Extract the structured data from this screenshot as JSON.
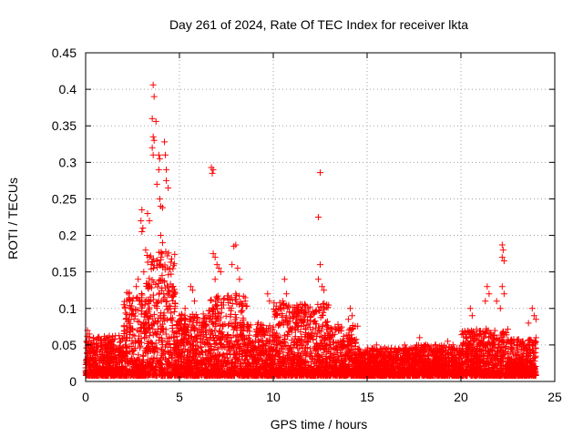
{
  "chart_data": {
    "type": "scatter",
    "title": "Day 261 of 2024, Rate Of TEC Index for receiver lkta",
    "xlabel": "GPS time / hours",
    "ylabel": "ROTI / TECUs",
    "xlim": [
      0,
      25
    ],
    "ylim": [
      0,
      0.45
    ],
    "xticks": [
      0,
      5,
      10,
      15,
      20,
      25
    ],
    "yticks": [
      0,
      0.05,
      0.1,
      0.15,
      0.2,
      0.25,
      0.3,
      0.35,
      0.4,
      0.45
    ],
    "xtick_labels": [
      "0",
      "5",
      "10",
      "15",
      "20",
      "25"
    ],
    "ytick_labels": [
      "0",
      "0.05",
      "0.1",
      "0.15",
      "0.2",
      "0.25",
      "0.3",
      "0.35",
      "0.4",
      "0.45"
    ],
    "grid": true,
    "marker": "+",
    "marker_color": "#ff0000",
    "series": [
      {
        "name": "ROTI",
        "points": [
          [
            3.6,
            0.406
          ],
          [
            3.65,
            0.39
          ],
          [
            3.55,
            0.36
          ],
          [
            3.75,
            0.356
          ],
          [
            3.6,
            0.335
          ],
          [
            3.65,
            0.33
          ],
          [
            3.55,
            0.32
          ],
          [
            3.6,
            0.31
          ],
          [
            3.9,
            0.31
          ],
          [
            3.95,
            0.305
          ],
          [
            3.9,
            0.29
          ],
          [
            4.2,
            0.328
          ],
          [
            4.25,
            0.31
          ],
          [
            4.3,
            0.29
          ],
          [
            4.3,
            0.275
          ],
          [
            4.4,
            0.265
          ],
          [
            3.8,
            0.27
          ],
          [
            3.95,
            0.25
          ],
          [
            4.0,
            0.24
          ],
          [
            4.1,
            0.238
          ],
          [
            3.0,
            0.235
          ],
          [
            2.95,
            0.22
          ],
          [
            3.3,
            0.23
          ],
          [
            3.4,
            0.22
          ],
          [
            3.05,
            0.21
          ],
          [
            3.0,
            0.205
          ],
          [
            4.0,
            0.2
          ],
          [
            4.1,
            0.19
          ],
          [
            3.2,
            0.18
          ],
          [
            3.5,
            0.16
          ],
          [
            6.7,
            0.293
          ],
          [
            6.8,
            0.29
          ],
          [
            6.75,
            0.285
          ],
          [
            12.5,
            0.286
          ],
          [
            12.4,
            0.225
          ],
          [
            6.8,
            0.175
          ],
          [
            6.9,
            0.17
          ],
          [
            7.0,
            0.16
          ],
          [
            7.1,
            0.155
          ],
          [
            7.2,
            0.15
          ],
          [
            6.9,
            0.14
          ],
          [
            8.0,
            0.187
          ],
          [
            7.9,
            0.185
          ],
          [
            7.8,
            0.16
          ],
          [
            8.1,
            0.155
          ],
          [
            8.2,
            0.14
          ],
          [
            8.0,
            0.12
          ],
          [
            5.6,
            0.13
          ],
          [
            5.7,
            0.125
          ],
          [
            5.8,
            0.11
          ],
          [
            10.6,
            0.14
          ],
          [
            10.7,
            0.12
          ],
          [
            10.5,
            0.11
          ],
          [
            9.7,
            0.12
          ],
          [
            9.8,
            0.11
          ],
          [
            12.5,
            0.16
          ],
          [
            12.6,
            0.13
          ],
          [
            12.7,
            0.125
          ],
          [
            12.4,
            0.14
          ],
          [
            14.1,
            0.1
          ],
          [
            14.2,
            0.09
          ],
          [
            14.0,
            0.085
          ],
          [
            11.3,
            0.09
          ],
          [
            11.5,
            0.08
          ],
          [
            21.4,
            0.13
          ],
          [
            21.5,
            0.12
          ],
          [
            21.3,
            0.11
          ],
          [
            20.5,
            0.1
          ],
          [
            20.6,
            0.09
          ],
          [
            21.9,
            0.11
          ],
          [
            22.2,
            0.187
          ],
          [
            22.25,
            0.18
          ],
          [
            22.2,
            0.17
          ],
          [
            22.3,
            0.165
          ],
          [
            22.2,
            0.13
          ],
          [
            22.3,
            0.12
          ],
          [
            22.1,
            0.1
          ],
          [
            23.8,
            0.1
          ],
          [
            23.9,
            0.09
          ],
          [
            24.0,
            0.085
          ],
          [
            23.6,
            0.08
          ],
          [
            24.0,
            0.06
          ],
          [
            0.1,
            0.07
          ],
          [
            0.2,
            0.065
          ],
          [
            0.05,
            0.055
          ],
          [
            0.3,
            0.05
          ],
          [
            1.2,
            0.05
          ],
          [
            1.5,
            0.045
          ],
          [
            2.3,
            0.12
          ],
          [
            2.2,
            0.11
          ],
          [
            2.1,
            0.1
          ],
          [
            2.5,
            0.11
          ],
          [
            2.7,
            0.13
          ],
          [
            2.8,
            0.14
          ],
          [
            3.1,
            0.15
          ],
          [
            3.3,
            0.13
          ],
          [
            5.0,
            0.09
          ],
          [
            5.3,
            0.1
          ],
          [
            6.2,
            0.08
          ],
          [
            8.5,
            0.11
          ],
          [
            9.2,
            0.08
          ],
          [
            15.5,
            0.05
          ],
          [
            17.0,
            0.05
          ],
          [
            17.8,
            0.06
          ],
          [
            19.3,
            0.055
          ],
          [
            23.0,
            0.05
          ]
        ],
        "dense_band": [
          {
            "x0": 0.0,
            "x1": 2.0,
            "base": 0.025,
            "spread": 0.03
          },
          {
            "x0": 2.0,
            "x1": 3.2,
            "base": 0.045,
            "spread": 0.07
          },
          {
            "x0": 3.2,
            "x1": 4.8,
            "base": 0.06,
            "spread": 0.11
          },
          {
            "x0": 4.8,
            "x1": 6.5,
            "base": 0.035,
            "spread": 0.05
          },
          {
            "x0": 6.5,
            "x1": 8.6,
            "base": 0.04,
            "spread": 0.07
          },
          {
            "x0": 8.6,
            "x1": 10.0,
            "base": 0.03,
            "spread": 0.04
          },
          {
            "x0": 10.0,
            "x1": 11.0,
            "base": 0.04,
            "spread": 0.06
          },
          {
            "x0": 11.0,
            "x1": 13.0,
            "base": 0.04,
            "spread": 0.06
          },
          {
            "x0": 13.0,
            "x1": 14.5,
            "base": 0.03,
            "spread": 0.04
          },
          {
            "x0": 14.5,
            "x1": 17.5,
            "base": 0.018,
            "spread": 0.02
          },
          {
            "x0": 17.5,
            "x1": 20.0,
            "base": 0.018,
            "spread": 0.025
          },
          {
            "x0": 20.0,
            "x1": 22.5,
            "base": 0.025,
            "spread": 0.04
          },
          {
            "x0": 22.5,
            "x1": 24.0,
            "base": 0.02,
            "spread": 0.03
          }
        ]
      }
    ]
  }
}
